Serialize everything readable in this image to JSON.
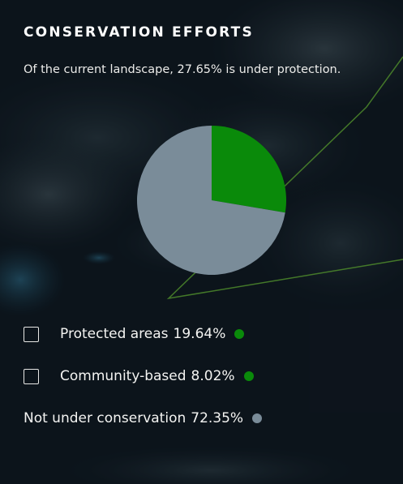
{
  "header": {
    "title": "CONSERVATION EFFORTS",
    "subtitle": "Of the current landscape, 27.65% is under protection."
  },
  "chart_data": {
    "type": "pie",
    "categories": [
      "Protected areas",
      "Community-based",
      "Not under conservation"
    ],
    "values": [
      19.64,
      8.02,
      72.35
    ],
    "colors": [
      "#0a8a0a",
      "#0a8a0a",
      "#7a8c99"
    ],
    "visible_slices": [
      {
        "label": "Under protection",
        "value": 27.65,
        "color": "#0a8a0a"
      },
      {
        "label": "Not under conservation",
        "value": 72.35,
        "color": "#7a8c99"
      }
    ]
  },
  "legend": {
    "items": [
      {
        "label": "Protected areas",
        "value": "19.64%",
        "color": "#0a8a0a",
        "checkbox": true,
        "checked": false
      },
      {
        "label": "Community-based",
        "value": "8.02%",
        "color": "#0a8a0a",
        "checkbox": true,
        "checked": false
      },
      {
        "label": "Not under conservation",
        "value": "72.35%",
        "color": "#7a8c99",
        "checkbox": false
      }
    ]
  },
  "map": {
    "boundary_color": "#4e8a2c"
  }
}
